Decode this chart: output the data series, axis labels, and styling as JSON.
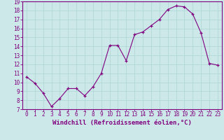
{
  "x": [
    0,
    1,
    2,
    3,
    4,
    5,
    6,
    7,
    8,
    9,
    10,
    11,
    12,
    13,
    14,
    15,
    16,
    17,
    18,
    19,
    20,
    21,
    22,
    23
  ],
  "y": [
    10.6,
    9.9,
    8.8,
    7.3,
    8.2,
    9.3,
    9.3,
    8.5,
    9.5,
    11.0,
    14.1,
    14.1,
    12.4,
    15.3,
    15.6,
    16.3,
    17.0,
    18.1,
    18.5,
    18.4,
    17.6,
    15.5,
    12.1,
    11.9
  ],
  "line_color": "#800080",
  "marker": "+",
  "marker_color": "#800080",
  "bg_color": "#cce8e8",
  "grid_color": "#b0d8d8",
  "xlabel": "Windchill (Refroidissement éolien,°C)",
  "xlabel_color": "#800080",
  "tick_color": "#800080",
  "spine_color": "#800080",
  "ylim": [
    7,
    19
  ],
  "xlim": [
    -0.5,
    23.5
  ],
  "yticks": [
    7,
    8,
    9,
    10,
    11,
    12,
    13,
    14,
    15,
    16,
    17,
    18,
    19
  ],
  "xticks": [
    0,
    1,
    2,
    3,
    4,
    5,
    6,
    7,
    8,
    9,
    10,
    11,
    12,
    13,
    14,
    15,
    16,
    17,
    18,
    19,
    20,
    21,
    22,
    23
  ],
  "tick_fontsize": 5.5,
  "xlabel_fontsize": 6.5
}
